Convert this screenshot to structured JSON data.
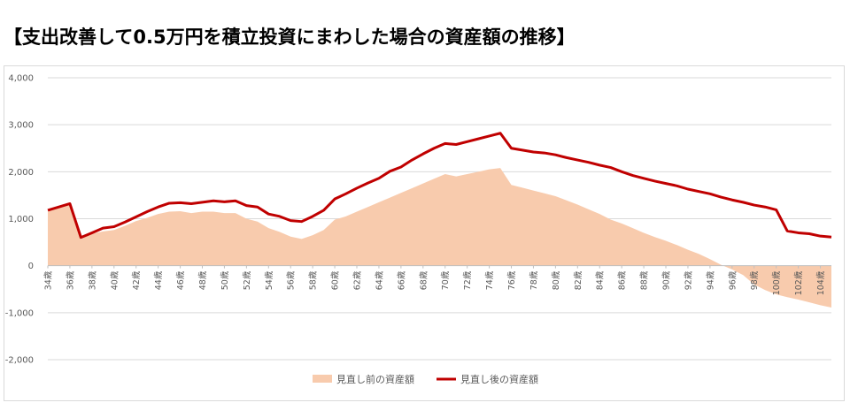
{
  "title": "【支出改善して0.5万円を積立投資にまわした場合の資産額の推移】",
  "chart_data": {
    "type": "area+line",
    "title": "【支出改善して0.5万円を積立投資にまわした場合の資産額の推移】",
    "xlabel": "",
    "ylabel": "",
    "ylim": [
      -2000,
      4000
    ],
    "yticks": [
      4000,
      3000,
      2000,
      1000,
      0,
      -1000,
      -2000
    ],
    "ytick_labels": [
      "4,000",
      "3,000",
      "2,000",
      "1,000",
      "0",
      "-1,000",
      "-2,000"
    ],
    "grid": true,
    "legend_position": "bottom-center",
    "x": [
      34,
      35,
      36,
      37,
      38,
      39,
      40,
      41,
      42,
      43,
      44,
      45,
      46,
      47,
      48,
      49,
      50,
      51,
      52,
      53,
      54,
      55,
      56,
      57,
      58,
      59,
      60,
      61,
      62,
      63,
      64,
      65,
      66,
      67,
      68,
      69,
      70,
      71,
      72,
      73,
      74,
      75,
      76,
      77,
      78,
      79,
      80,
      81,
      82,
      83,
      84,
      85,
      86,
      87,
      88,
      89,
      90,
      91,
      92,
      93,
      94,
      95,
      96,
      97,
      98,
      99,
      100,
      101,
      102,
      103,
      104,
      105
    ],
    "x_tick_labels": [
      "34歳",
      "36歳",
      "38歳",
      "40歳",
      "42歳",
      "44歳",
      "46歳",
      "48歳",
      "50歳",
      "52歳",
      "54歳",
      "56歳",
      "58歳",
      "60歳",
      "62歳",
      "64歳",
      "66歳",
      "68歳",
      "70歳",
      "72歳",
      "74歳",
      "76歳",
      "78歳",
      "80歳",
      "82歳",
      "84歳",
      "86歳",
      "88歳",
      "90歳",
      "92歳",
      "94歳",
      "96歳",
      "98歳",
      "100歳",
      "102歳",
      "104歳"
    ],
    "series": [
      {
        "name": "見直し前の資産額",
        "kind": "area",
        "color": "#f8cbad",
        "values": [
          1150,
          1250,
          1300,
          560,
          680,
          730,
          760,
          850,
          950,
          1020,
          1100,
          1150,
          1160,
          1120,
          1150,
          1150,
          1120,
          1120,
          1000,
          940,
          800,
          720,
          620,
          570,
          650,
          760,
          980,
          1050,
          1150,
          1250,
          1350,
          1450,
          1550,
          1650,
          1750,
          1850,
          1950,
          1900,
          1950,
          2000,
          2050,
          2080,
          1720,
          1660,
          1600,
          1540,
          1480,
          1390,
          1300,
          1200,
          1100,
          980,
          900,
          800,
          700,
          610,
          530,
          440,
          340,
          250,
          140,
          20,
          -80,
          -200,
          -400,
          -520,
          -610,
          -670,
          -720,
          -780,
          -840,
          -890
        ]
      },
      {
        "name": "見直し後の資産額",
        "kind": "line",
        "color": "#c00000",
        "values": [
          1180,
          1250,
          1320,
          600,
          700,
          800,
          830,
          930,
          1040,
          1150,
          1250,
          1330,
          1340,
          1320,
          1350,
          1380,
          1360,
          1380,
          1280,
          1250,
          1100,
          1050,
          960,
          940,
          1050,
          1180,
          1420,
          1530,
          1650,
          1760,
          1860,
          2010,
          2100,
          2250,
          2380,
          2500,
          2600,
          2580,
          2640,
          2700,
          2760,
          2820,
          2500,
          2460,
          2420,
          2400,
          2360,
          2300,
          2250,
          2200,
          2140,
          2090,
          2000,
          1920,
          1860,
          1800,
          1750,
          1700,
          1630,
          1580,
          1530,
          1460,
          1400,
          1350,
          1290,
          1250,
          1190,
          740,
          700,
          680,
          630,
          610
        ]
      }
    ]
  }
}
